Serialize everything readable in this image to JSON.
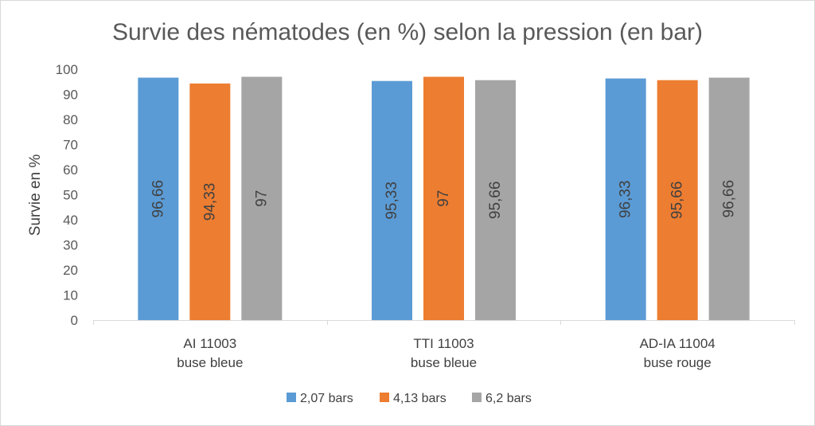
{
  "chart_data": {
    "type": "bar",
    "title": "Survie des nématodes (en %) selon la pression (en bar)",
    "xlabel": "",
    "ylabel": "Survie en %",
    "ylim": [
      0,
      100
    ],
    "yticks": [
      "0",
      "10",
      "20",
      "30",
      "40",
      "50",
      "60",
      "70",
      "80",
      "90",
      "100"
    ],
    "categories": [
      [
        "AI 11003",
        "buse bleue"
      ],
      [
        "TTI 11003",
        "buse bleue"
      ],
      [
        "AD-IA 11004",
        "buse rouge"
      ]
    ],
    "series": [
      {
        "name": "2,07 bars",
        "color": "#5b9bd5",
        "values": [
          96.66,
          95.33,
          96.33
        ],
        "labels": [
          "96,66",
          "95,33",
          "96,33"
        ]
      },
      {
        "name": "4,13 bars",
        "color": "#ed7d31",
        "values": [
          94.33,
          97,
          95.66
        ],
        "labels": [
          "94,33",
          "97",
          "95,66"
        ]
      },
      {
        "name": "6,2 bars",
        "color": "#a5a5a5",
        "values": [
          97,
          95.66,
          96.66
        ],
        "labels": [
          "97",
          "95,66",
          "96,66"
        ]
      }
    ],
    "grid": false,
    "legend_position": "bottom"
  }
}
